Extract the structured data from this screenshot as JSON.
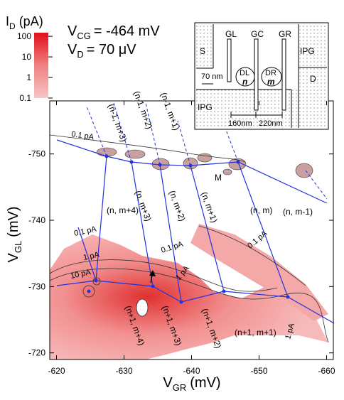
{
  "chart_data": {
    "type": "contour",
    "x_label": {
      "main": "V",
      "sub": "GR",
      "unit": "(mV)"
    },
    "y_label": {
      "main": "V",
      "sub": "GL",
      "unit": "(mV)"
    },
    "xlim": [
      -619,
      -661
    ],
    "ylim": [
      -719,
      -758
    ],
    "xticks": [
      -620,
      -630,
      -640,
      -650,
      -660
    ],
    "yticks": [
      -720,
      -730,
      -740,
      -750
    ],
    "colorbar": {
      "label": {
        "main": "I",
        "sub": "D",
        "unit": "(pA)"
      },
      "scale": "log",
      "clim": [
        0.1,
        150
      ],
      "ticks": [
        100,
        10,
        1,
        0.1
      ]
    },
    "conditions": [
      {
        "main": "V",
        "sub": "CG",
        "rest": "= -464 mV"
      },
      {
        "main": "V",
        "sub": "D",
        "rest": "= 70 μV"
      }
    ],
    "region_labels": [
      "(n, m+4)",
      "(n, m)",
      "(n, m-1)",
      "(n+1, m+1)",
      "(n-1, m+3)",
      "(n-1, m+2)",
      "(n-1, m+1)",
      "(n, m+3)",
      "(n, m+2)",
      "(n, m+1)",
      "(n+1, m+4)",
      "(n+1, m+3)",
      "(n+1, m+2)"
    ],
    "contour_labels": [
      "0.1 pA",
      "0.1 pA",
      "0.1 pA",
      "0.1 pA",
      "1 pA",
      "1 pA",
      "1 pA",
      "10 pA"
    ],
    "point_label": "M",
    "inset": {
      "gates": [
        "GL",
        "GC",
        "GR"
      ],
      "S": "S",
      "D": "D",
      "IPG": [
        "IPG",
        "IPG"
      ],
      "dots": [
        {
          "name": "DL",
          "n": "n"
        },
        {
          "name": "DR",
          "n": "m"
        }
      ],
      "dims": [
        "70 nm",
        "160nm",
        "220nm"
      ]
    }
  }
}
